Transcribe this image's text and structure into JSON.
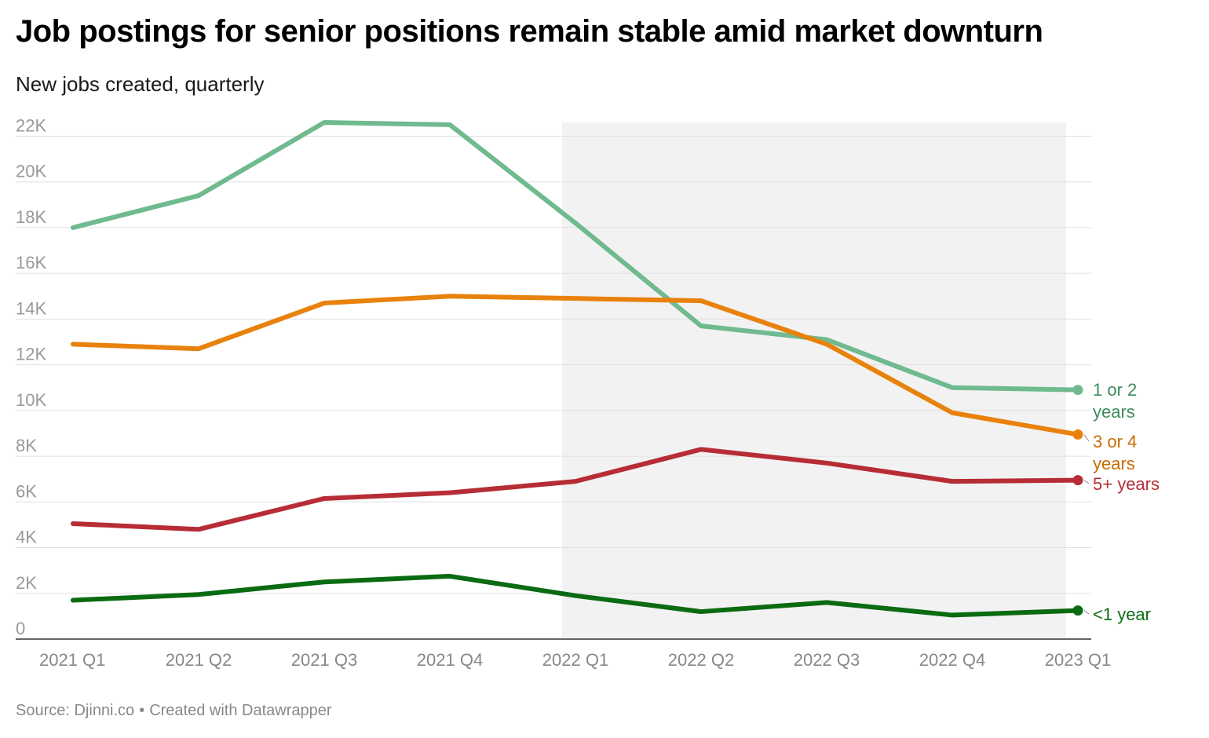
{
  "title": "Job postings for senior positions remain stable amid market downturn",
  "subtitle": "New jobs created, quarterly",
  "footer": {
    "source": "Source: Djinni.co",
    "separator": "•",
    "credit": "Created with Datawrapper"
  },
  "chart_data": {
    "type": "line",
    "x": [
      "2021 Q1",
      "2021 Q2",
      "2021 Q3",
      "2021 Q4",
      "2022 Q1",
      "2022 Q2",
      "2022 Q3",
      "2022 Q4",
      "2023 Q1"
    ],
    "ylim": [
      0,
      22000
    ],
    "yticks": [
      0,
      2000,
      4000,
      6000,
      8000,
      10000,
      12000,
      14000,
      16000,
      18000,
      20000,
      22000
    ],
    "ytick_labels": [
      "0",
      "2K",
      "4K",
      "6K",
      "8K",
      "10K",
      "12K",
      "14K",
      "16K",
      "18K",
      "20K",
      "22K"
    ],
    "grid": true,
    "shaded_range": {
      "from": "2022 Q1",
      "to": "2023 Q1"
    },
    "series": [
      {
        "name": "1 or 2 years",
        "label_lines": [
          "1 or 2",
          "years"
        ],
        "color": "#6fba8f",
        "label_color": "#3c8c5a",
        "values": [
          18000,
          19400,
          22600,
          22500,
          18200,
          13700,
          13100,
          11000,
          10900
        ]
      },
      {
        "name": "3 or 4 years",
        "label_lines": [
          "3 or 4",
          "years"
        ],
        "color": "#e8820c",
        "label_color": "#c96d00",
        "values": [
          12900,
          12700,
          14700,
          15000,
          14900,
          14800,
          12900,
          9900,
          8950
        ]
      },
      {
        "name": "5+ years",
        "label_lines": [
          "5+ years"
        ],
        "color": "#b72d35",
        "label_color": "#b72d35",
        "values": [
          5050,
          4800,
          6150,
          6400,
          6900,
          8300,
          7700,
          6900,
          6950
        ]
      },
      {
        "name": "<1 year",
        "label_lines": [
          "<1 year"
        ],
        "color": "#0b6b12",
        "label_color": "#0b6b12",
        "values": [
          1700,
          1950,
          2500,
          2750,
          1900,
          1200,
          1600,
          1050,
          1250
        ]
      }
    ]
  }
}
